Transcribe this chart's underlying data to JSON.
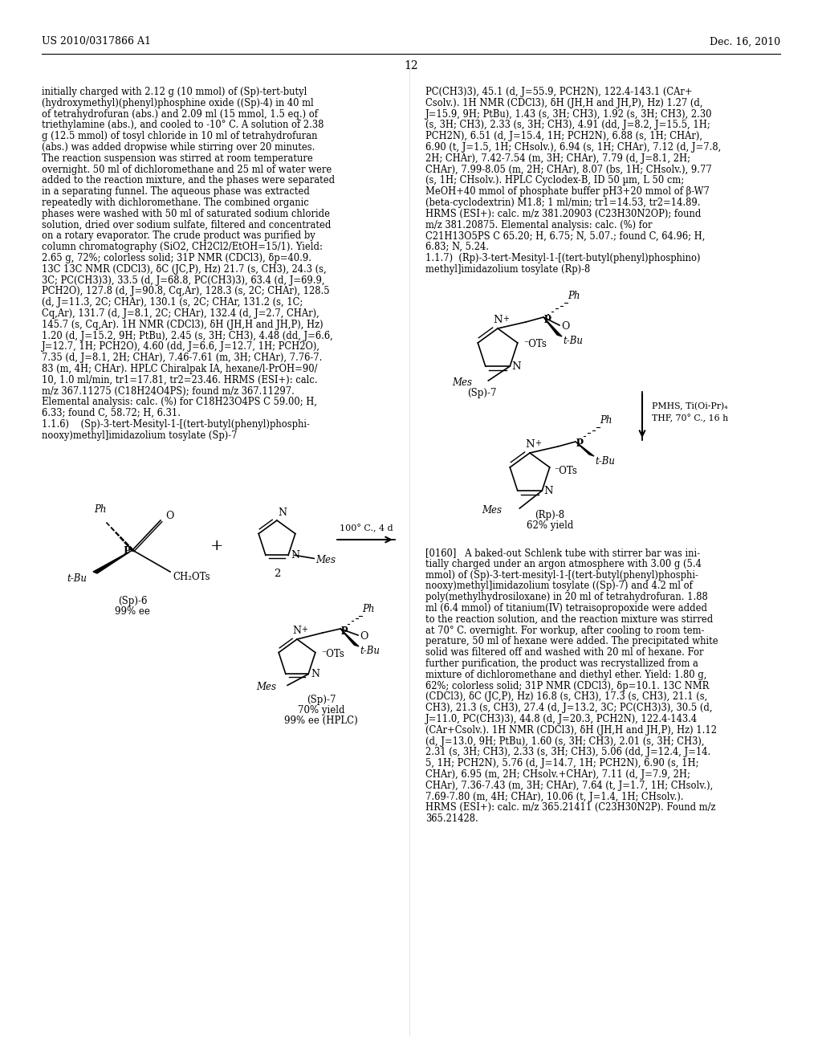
{
  "background_color": "#ffffff",
  "page_number": "12",
  "header_left": "US 2010/0317866 A1",
  "header_right": "Dec. 16, 2010",
  "left_col_lines": [
    "initially charged with 2.12 g (10 mmol) of (Sp)-tert-butyl",
    "(hydroxymethyl)(phenyl)phosphine oxide ((Sp)-4) in 40 ml",
    "of tetrahydrofuran (abs.) and 2.09 ml (15 mmol, 1.5 eq.) of",
    "triethylamine (abs.), and cooled to -10° C. A solution of 2.38",
    "g (12.5 mmol) of tosyl chloride in 10 ml of tetrahydrofuran",
    "(abs.) was added dropwise while stirring over 20 minutes.",
    "The reaction suspension was stirred at room temperature",
    "overnight. 50 ml of dichloromethane and 25 ml of water were",
    "added to the reaction mixture, and the phases were separated",
    "in a separating funnel. The aqueous phase was extracted",
    "repeatedly with dichloromethane. The combined organic",
    "phases were washed with 50 ml of saturated sodium chloride",
    "solution, dried over sodium sulfate, filtered and concentrated",
    "on a rotary evaporator. The crude product was purified by",
    "column chromatography (SiO2, CH2Cl2/EtOH=15/1). Yield:",
    "2.65 g, 72%; colorless solid; 31P NMR (CDCl3), δp=40.9.",
    "13C 13C NMR (CDCl3), δC (JC,P), Hz) 21.7 (s, CH3), 24.3 (s,",
    "3C; PC(CH3)3), 33.5 (d, J=68.8, PC(CH3)3), 63.4 (d, J=69.9,",
    "PCH2O), 127.8 (d, J=90.8, Cq,Ar), 128.3 (s, 2C; CHAr), 128.5",
    "(d, J=11.3, 2C; CHAr), 130.1 (s, 2C; CHAr, 131.2 (s, 1C;",
    "Cq,Ar), 131.7 (d, J=8.1, 2C; CHAr), 132.4 (d, J=2.7, CHAr),",
    "145.7 (s, Cq,Ar). 1H NMR (CDCl3), δH (JH,H and JH,P), Hz)",
    "1.20 (d, J=15.2, 9H; PtBu), 2.45 (s, 3H; CH3), 4.48 (dd, J=6.6,",
    "J=12.7, 1H; PCH2O), 4.60 (dd, J=6.6, J=12.7, 1H; PCH2O),",
    "7.35 (d, J=8.1, 2H; CHAr), 7.46-7.61 (m, 3H; CHAr), 7.76-7.",
    "83 (m, 4H; CHAr). HPLC Chiralpak IA, hexane/l-PrOH=90/",
    "10, 1.0 ml/min, tr1=17.81, tr2=23.46. HRMS (ESI+): calc.",
    "m/z 367.11275 (C18H24O4PS); found m/z 367.11297.",
    "Elemental analysis: calc. (%) for C18H23O4PS C 59.00; H,",
    "6.33; found C, 58.72; H, 6.31.",
    "1.1.6)    (Sp)-3-tert-Mesityl-1-[(tert-butyl(phenyl)phosphi-",
    "nooxy)methyl]imidazolium tosylate (Sp)-7"
  ],
  "right_col_lines_top": [
    "PC(CH3)3), 45.1 (d, J=55.9, PCH2N), 122.4-143.1 (CAr+",
    "Csolv.). 1H NMR (CDCl3), δH (JH,H and JH,P), Hz) 1.27 (d,",
    "J=15.9, 9H; PtBu), 1.43 (s, 3H; CH3), 1.92 (s, 3H; CH3), 2.30",
    "(s, 3H; CH3), 2.33 (s, 3H; CH3), 4.91 (dd, J=8.2, J=15.5, 1H;",
    "PCH2N), 6.51 (d, J=15.4, 1H; PCH2N), 6.88 (s, 1H; CHAr),",
    "6.90 (t, J=1.5, 1H; CHsolv.), 6.94 (s, 1H; CHAr), 7.12 (d, J=7.8,",
    "2H; CHAr), 7.42-7.54 (m, 3H; CHAr), 7.79 (d, J=8.1, 2H;",
    "CHAr), 7.99-8.05 (m, 2H; CHAr), 8.07 (bs, 1H; CHsolv.), 9.77",
    "(s, 1H; CHsolv.). HPLC Cyclodex-B, ID 50 µm, L 50 cm;",
    "MeOH+40 mmol of phosphate buffer pH3+20 mmol of β-W7",
    "(beta-cyclodextrin) M1.8; 1 ml/min; tr1=14.53, tr2=14.89.",
    "HRMS (ESI+): calc. m/z 381.20903 (C23H30N2OP); found",
    "m/z 381.20875. Elemental analysis: calc. (%) for",
    "C21H13O5PS C 65.20; H, 6.75; N, 5.07.; found C, 64.96; H,",
    "6.83; N, 5.24.",
    "1.1.7)  (Rp)-3-tert-Mesityl-1-[(tert-butyl(phenyl)phosphino)",
    "methyl]imidazolium tosylate (Rp)-8"
  ],
  "right_col_lines_bottom": [
    "[0160]   A baked-out Schlenk tube with stirrer bar was ini-",
    "tially charged under an argon atmosphere with 3.00 g (5.4",
    "mmol) of (Sp)-3-tert-mesityl-1-[(tert-butyl(phenyl)phosphi-",
    "nooxy)methyl]imidazolium tosylate ((Sp)-7) and 4.2 ml of",
    "poly(methylhydrosiloxane) in 20 ml of tetrahydrofuran. 1.88",
    "ml (6.4 mmol) of titanium(IV) tetraisopropoxide were added",
    "to the reaction solution, and the reaction mixture was stirred",
    "at 70° C. overnight. For workup, after cooling to room tem-",
    "perature, 50 ml of hexane were added. The precipitated white",
    "solid was filtered off and washed with 20 ml of hexane. For",
    "further purification, the product was recrystallized from a",
    "mixture of dichloromethane and diethyl ether. Yield: 1.80 g,",
    "62%; colorless solid; 31P NMR (CDCl3), δp=10.1. 13C NMR",
    "(CDCl3), δC (JC,P), Hz) 16.8 (s, CH3), 17.3 (s, CH3), 21.1 (s,",
    "CH3), 21.3 (s, CH3), 27.4 (d, J=13.2, 3C; PC(CH3)3), 30.5 (d,",
    "J=11.0, PC(CH3)3), 44.8 (d, J=20.3, PCH2N), 122.4-143.4",
    "(CAr+Csolv.). 1H NMR (CDCl3), δH (JH,H and JH,P), Hz) 1.12",
    "(d, J=13.0, 9H; PtBu), 1.60 (s, 3H; CH3), 2.01 (s, 3H; CH3),",
    "2.31 (s, 3H; CH3), 2.33 (s, 3H; CH3), 5.06 (dd, J=12.4, J=14.",
    "5, 1H; PCH2N), 5.76 (d, J=14.7, 1H; PCH2N), 6.90 (s, 1H;",
    "CHAr), 6.95 (m, 2H; CHsolv.+CHAr), 7.11 (d, J=7.9, 2H;",
    "CHAr), 7.36-7.43 (m, 3H; CHAr), 7.64 (t, J=1.7, 1H; CHsolv.),",
    "7.69-7.80 (m, 4H; CHAr), 10.06 (t, J=1.4, 1H; CHsolv.).",
    "HRMS (ESI+): calc. m/z 365.21411 (C23H30N2P). Found m/z",
    "365.21428."
  ]
}
